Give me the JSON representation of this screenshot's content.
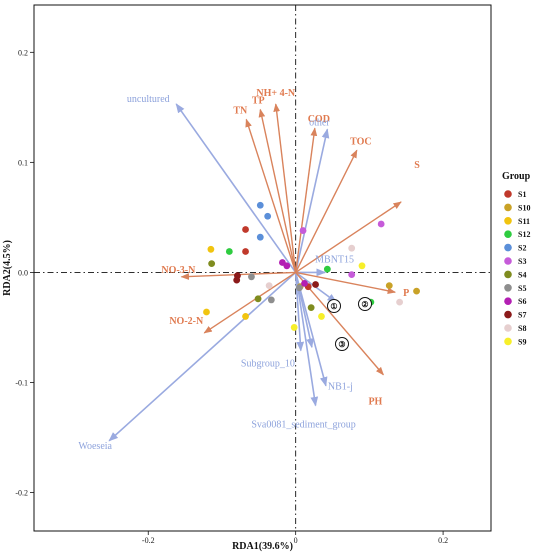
{
  "chart_data": {
    "type": "scatter",
    "xlabel": "RDA1(39.6%)",
    "ylabel": "RDA2(4.5%)",
    "xlim": [
      -0.355,
      0.265
    ],
    "ylim": [
      -0.235,
      0.243
    ],
    "x_ticks": [
      -0.2,
      0,
      0.2
    ],
    "y_ticks": [
      -0.2,
      -0.1,
      0.0,
      0.1,
      0.2
    ],
    "x_tick_labels": [
      "-0.2",
      "0",
      "0.2"
    ],
    "y_tick_labels": [
      "-0.2",
      "-0.1",
      "0.0",
      "0.1",
      "0.2"
    ],
    "reference_lines": {
      "x": 0,
      "y": 0,
      "style": "dash-dot"
    },
    "legend": {
      "title": "Group",
      "placement": "right",
      "groups": [
        {
          "name": "S1",
          "color": "#c0392b"
        },
        {
          "name": "S10",
          "color": "#c9a227"
        },
        {
          "name": "S11",
          "color": "#f1c40f"
        },
        {
          "name": "S12",
          "color": "#2ecc40"
        },
        {
          "name": "S2",
          "color": "#5b8fd9"
        },
        {
          "name": "S3",
          "color": "#c65bd9"
        },
        {
          "name": "S4",
          "color": "#7f8c1f"
        },
        {
          "name": "S5",
          "color": "#8e8e8e"
        },
        {
          "name": "S6",
          "color": "#b31fb3"
        },
        {
          "name": "S7",
          "color": "#8b1a1a"
        },
        {
          "name": "S8",
          "color": "#e6cfcf"
        },
        {
          "name": "S9",
          "color": "#f7ef2a"
        }
      ]
    },
    "env_arrow_color": "#d9835c",
    "bacteria_arrow_color": "#9aaae0",
    "env_arrows": [
      {
        "label": "NH+ 4-N",
        "x": -0.027,
        "y": 0.153
      },
      {
        "label": "TP",
        "x": -0.048,
        "y": 0.148
      },
      {
        "label": "COD",
        "x": 0.026,
        "y": 0.131
      },
      {
        "label": "TN",
        "x": -0.067,
        "y": 0.139
      },
      {
        "label": "TOC",
        "x": 0.083,
        "y": 0.111
      },
      {
        "label": "S",
        "x": 0.143,
        "y": 0.064
      },
      {
        "label": "NO-3-N",
        "x": -0.155,
        "y": -0.004
      },
      {
        "label": "P",
        "x": 0.135,
        "y": -0.018
      },
      {
        "label": "NO-2-N",
        "x": -0.124,
        "y": -0.055
      },
      {
        "label": "PH",
        "x": 0.119,
        "y": -0.093
      }
    ],
    "bacteria_arrows": [
      {
        "label": "uncultured",
        "x": -0.162,
        "y": 0.153
      },
      {
        "label": "other",
        "x": 0.043,
        "y": 0.13
      },
      {
        "label": "MBNT15",
        "x": 0.04,
        "y": 0.0
      },
      {
        "label": "Subgroup_10",
        "x": 0.007,
        "y": -0.071
      },
      {
        "label": "NB1-j",
        "x": 0.041,
        "y": -0.103
      },
      {
        "label": "Sva0081_sediment_group",
        "x": 0.027,
        "y": -0.121
      },
      {
        "label": "Woeseia",
        "x": -0.253,
        "y": -0.153
      },
      {
        "label": "",
        "x": 0.055,
        "y": -0.027
      },
      {
        "label": "",
        "x": 0.022,
        "y": -0.068
      }
    ],
    "annotations": [
      "①",
      "②",
      "③"
    ],
    "points": [
      {
        "group": "S1",
        "x": -0.068,
        "y": 0.039
      },
      {
        "group": "S1",
        "x": -0.068,
        "y": 0.019
      },
      {
        "group": "S1",
        "x": 0.017,
        "y": -0.013
      },
      {
        "group": "S10",
        "x": 0.127,
        "y": -0.012
      },
      {
        "group": "S10",
        "x": 0.164,
        "y": -0.017
      },
      {
        "group": "S10",
        "x": 0.006,
        "y": -0.013
      },
      {
        "group": "S11",
        "x": -0.115,
        "y": 0.021
      },
      {
        "group": "S11",
        "x": -0.121,
        "y": -0.036
      },
      {
        "group": "S11",
        "x": -0.068,
        "y": -0.04
      },
      {
        "group": "S12",
        "x": -0.09,
        "y": 0.019
      },
      {
        "group": "S12",
        "x": 0.043,
        "y": 0.003
      },
      {
        "group": "S12",
        "x": 0.102,
        "y": -0.027
      },
      {
        "group": "S2",
        "x": -0.048,
        "y": 0.061
      },
      {
        "group": "S2",
        "x": -0.038,
        "y": 0.051
      },
      {
        "group": "S2",
        "x": -0.048,
        "y": 0.032
      },
      {
        "group": "S3",
        "x": 0.01,
        "y": 0.038
      },
      {
        "group": "S3",
        "x": 0.116,
        "y": 0.044
      },
      {
        "group": "S3",
        "x": 0.076,
        "y": -0.002
      },
      {
        "group": "S4",
        "x": -0.114,
        "y": 0.008
      },
      {
        "group": "S4",
        "x": -0.051,
        "y": -0.024
      },
      {
        "group": "S4",
        "x": 0.021,
        "y": -0.032
      },
      {
        "group": "S5",
        "x": -0.06,
        "y": -0.004
      },
      {
        "group": "S5",
        "x": -0.033,
        "y": -0.025
      },
      {
        "group": "S5",
        "x": 0.005,
        "y": -0.014
      },
      {
        "group": "S6",
        "x": -0.018,
        "y": 0.009
      },
      {
        "group": "S6",
        "x": -0.012,
        "y": 0.006
      },
      {
        "group": "S6",
        "x": 0.012,
        "y": -0.01
      },
      {
        "group": "S7",
        "x": -0.08,
        "y": -0.007
      },
      {
        "group": "S7",
        "x": -0.079,
        "y": -0.003
      },
      {
        "group": "S7",
        "x": 0.027,
        "y": -0.011
      },
      {
        "group": "S8",
        "x": 0.076,
        "y": 0.022
      },
      {
        "group": "S8",
        "x": 0.141,
        "y": -0.027
      },
      {
        "group": "S8",
        "x": -0.036,
        "y": -0.012
      },
      {
        "group": "S9",
        "x": 0.09,
        "y": 0.006
      },
      {
        "group": "S9",
        "x": 0.035,
        "y": -0.04
      },
      {
        "group": "S9",
        "x": -0.002,
        "y": -0.05
      }
    ]
  }
}
